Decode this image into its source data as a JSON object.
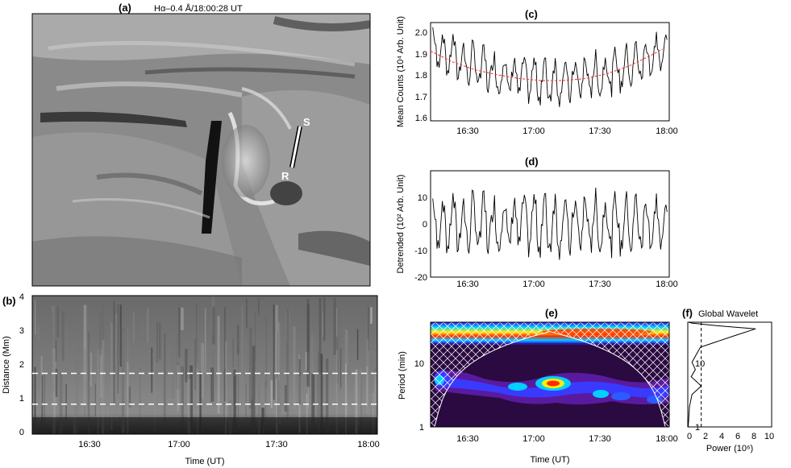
{
  "panels": {
    "a": {
      "label": "(a)",
      "title": "Hα–0.4 Å/18:00:28 UT",
      "marker_start": "S",
      "marker_end": "R"
    },
    "b": {
      "label": "(b)",
      "ylabel": "Distance (Mm)",
      "xlabel": "Time (UT)",
      "dashed_lines": [
        0.9,
        1.75
      ]
    },
    "c": {
      "label": "(c)",
      "ylabel": "Mean Counts (10⁴ Arb. Unit)"
    },
    "d": {
      "label": "(d)",
      "ylabel": "Detrended (10² Arb. Unit)"
    },
    "e": {
      "label": "(e)",
      "ylabel": "Period (min)",
      "xlabel": "Time (UT)"
    },
    "f": {
      "label": "(f)",
      "title": "Global Wavelet",
      "xlabel": "Power (10⁶)"
    }
  },
  "colors": {
    "trend": "#ff2a2a",
    "series": "#000000",
    "coi": "#ffffff"
  },
  "chart_data": [
    {
      "panel": "b",
      "type": "heatmap",
      "x_ticks": [
        "16:30",
        "17:00",
        "17:30",
        "18:00"
      ],
      "y_ticks": [
        "0",
        "1",
        "2",
        "3",
        "4"
      ],
      "ylim": [
        0,
        4
      ],
      "xlabel": "Time (UT)",
      "ylabel": "Distance (Mm)"
    },
    {
      "panel": "c",
      "type": "line",
      "x_ticks": [
        "16:30",
        "17:00",
        "17:30",
        "18:00"
      ],
      "y_ticks": [
        "1.6",
        "1.7",
        "1.8",
        "1.9",
        "2.0"
      ],
      "ylim": [
        1.55,
        2.05
      ],
      "ylabel": "Mean Counts (10⁴ Arb. Unit)",
      "trend": {
        "x": [
          0,
          10,
          20,
          30,
          40,
          50,
          60,
          70,
          80,
          90,
          100,
          105
        ],
        "y": [
          1.905,
          1.85,
          1.81,
          1.785,
          1.765,
          1.755,
          1.755,
          1.765,
          1.79,
          1.83,
          1.885,
          1.915
        ]
      }
    },
    {
      "panel": "d",
      "type": "line",
      "x_ticks": [
        "16:30",
        "17:00",
        "17:30",
        "18:00"
      ],
      "y_ticks": [
        "-20",
        "-10",
        "0",
        "10"
      ],
      "ylim": [
        -20,
        20
      ],
      "ylabel": "Detrended (10² Arb. Unit)"
    },
    {
      "panel": "e",
      "type": "heatmap",
      "x_ticks": [
        "16:30",
        "17:00",
        "17:30",
        "18:00"
      ],
      "y_ticks": [
        "1",
        "10"
      ],
      "ylim": [
        1,
        35
      ],
      "yscale": "log",
      "xlabel": "Time (UT)",
      "ylabel": "Period (min)"
    },
    {
      "panel": "f",
      "type": "line",
      "x_ticks": [
        "0",
        "2",
        "4",
        "6",
        "8",
        "10"
      ],
      "xlim": [
        0,
        10
      ],
      "ylim": [
        1,
        35
      ],
      "yscale": "log",
      "significance_level": 1.6,
      "x": [
        0.05,
        0.2,
        0.5,
        1.6,
        1.1,
        0.4,
        0.9,
        0.5,
        1.5,
        5.5,
        8.1,
        3.5,
        0.5,
        0.1
      ],
      "y": [
        1,
        2,
        3,
        4,
        4.6,
        5.5,
        7,
        9,
        15,
        22,
        28,
        31,
        34,
        35
      ],
      "xlabel": "Power (10⁶)"
    }
  ]
}
